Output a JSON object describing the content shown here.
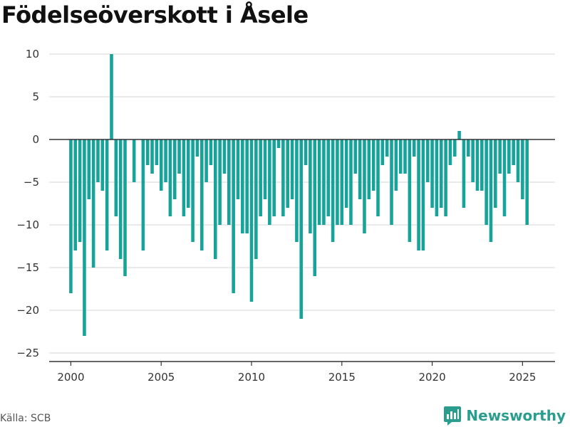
{
  "header": {
    "title": "Födelseöverskott i Åsele"
  },
  "footer": {
    "source": "Källa: SCB",
    "brand": "Newsworthy"
  },
  "colors": {
    "bar": "#16a39a",
    "grid": "#dddddd",
    "zero_line": "#333333",
    "brand": "#2a9d8f"
  },
  "chart_data": {
    "type": "bar",
    "title": "Födelseöverskott i Åsele",
    "xlabel": "",
    "ylabel": "",
    "ylim": [
      -26,
      10.5
    ],
    "xlim": [
      1998.8,
      2026.8
    ],
    "y_ticks": [
      10,
      5,
      0,
      -5,
      -10,
      -15,
      -20,
      -25
    ],
    "x_ticks": [
      2000,
      2005,
      2010,
      2015,
      2020,
      2025
    ],
    "grid": true,
    "x_start": 2000.0,
    "x_step": 0.25,
    "values": [
      -18,
      -13,
      -12,
      -23,
      -7,
      -15,
      -5,
      -6,
      -13,
      10,
      -9,
      -14,
      -16,
      0,
      -5,
      0,
      -13,
      -3,
      -4,
      -3,
      -6,
      -5,
      -9,
      -7,
      -4,
      -9,
      -8,
      -12,
      -2,
      -13,
      -5,
      -3,
      -14,
      -10,
      -4,
      -10,
      -18,
      -7,
      -11,
      -11,
      -19,
      -14,
      -9,
      -7,
      -10,
      -9,
      -1,
      -9,
      -8,
      -7,
      -12,
      -21,
      -3,
      -11,
      -16,
      -10,
      -10,
      -9,
      -12,
      -10,
      -10,
      -8,
      -10,
      -4,
      -7,
      -11,
      -7,
      -6,
      -9,
      -3,
      -2,
      -10,
      -6,
      -4,
      -4,
      -12,
      -2,
      -13,
      -13,
      -5,
      -8,
      -9,
      -8,
      -9,
      -3,
      -2,
      1,
      -8,
      -2,
      -5,
      -6,
      -6,
      -10,
      -12,
      -8,
      -4,
      -9,
      -4,
      -3,
      -5,
      -7,
      -10
    ]
  }
}
